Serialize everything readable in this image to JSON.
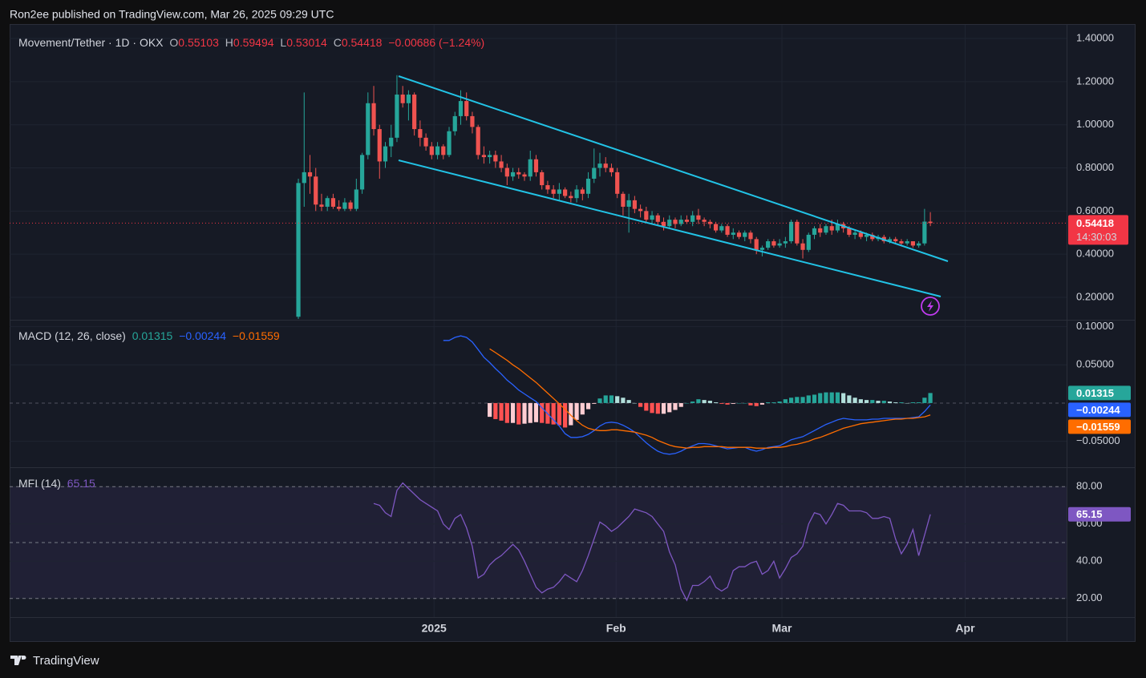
{
  "header": "Ron2ee published on TradingView.com, Mar 26, 2025 09:29 UTC",
  "footer": "TradingView",
  "chart_data": [
    {
      "type": "candlestick",
      "title": "Movement/Tether · 1D · OKX",
      "ohlc_keys": [
        "O",
        "H",
        "L",
        "C"
      ],
      "ohlc_labels": [
        "0.55103",
        "0.59494",
        "0.53014",
        "0.54418"
      ],
      "change_label": "−0.00686 (−1.24%)",
      "last_price_label": "0.54418",
      "countdown": "14:30:03",
      "up_color": "#26a69a",
      "down_color": "#ef5350",
      "last_line_color": "#f23645",
      "xlim": [
        -49.8,
        132.5
      ],
      "xticks": [
        {
          "value": 23.4,
          "label": "2025"
        },
        {
          "value": 54.8,
          "label": "Feb"
        },
        {
          "value": 83.4,
          "label": "Mar"
        },
        {
          "value": 115,
          "label": "Apr"
        }
      ],
      "ylim": [
        0.096,
        1.467
      ],
      "yticks": [
        {
          "value": 0.2,
          "label": "0.20000"
        },
        {
          "value": 0.4,
          "label": "0.40000"
        },
        {
          "value": 0.6,
          "label": "0.60000"
        },
        {
          "value": 0.8,
          "label": "0.80000"
        },
        {
          "value": 1.0,
          "label": "1.00000"
        },
        {
          "value": 1.2,
          "label": "1.20000"
        },
        {
          "value": 1.4,
          "label": "1.40000"
        }
      ],
      "grid": true,
      "open": [
        0.11,
        0.73,
        0.78,
        0.76,
        0.63,
        0.62,
        0.66,
        0.62,
        0.61,
        0.64,
        0.61,
        0.7,
        0.86,
        1.1,
        0.98,
        0.83,
        0.9,
        0.94,
        1.14,
        1.1,
        1.14,
        0.98,
        0.94,
        0.9,
        0.86,
        0.9,
        0.86,
        0.97,
        1.04,
        1.11,
        1.04,
        0.99,
        0.86,
        0.85,
        0.86,
        0.83,
        0.8,
        0.76,
        0.78,
        0.77,
        0.76,
        0.84,
        0.78,
        0.72,
        0.7,
        0.68,
        0.7,
        0.67,
        0.66,
        0.7,
        0.68,
        0.75,
        0.8,
        0.82,
        0.8,
        0.78,
        0.68,
        0.62,
        0.65,
        0.61,
        0.6,
        0.56,
        0.58,
        0.55,
        0.53,
        0.56,
        0.54,
        0.56,
        0.55,
        0.58,
        0.56,
        0.55,
        0.54,
        0.51,
        0.53,
        0.49,
        0.5,
        0.48,
        0.5,
        0.47,
        0.42,
        0.43,
        0.46,
        0.44,
        0.45,
        0.46,
        0.55,
        0.45,
        0.42,
        0.49,
        0.52,
        0.5,
        0.53,
        0.51,
        0.54,
        0.52,
        0.49,
        0.5,
        0.48,
        0.49,
        0.47,
        0.48,
        0.46,
        0.47,
        0.46,
        0.45,
        0.46,
        0.44,
        0.45,
        0.55103
      ],
      "high": [
        0.75,
        1.15,
        0.86,
        0.8,
        0.68,
        0.67,
        0.68,
        0.65,
        0.66,
        0.65,
        0.75,
        0.87,
        1.15,
        1.18,
        1.0,
        0.92,
        1.0,
        1.23,
        1.18,
        1.16,
        1.15,
        1.02,
        0.96,
        0.92,
        0.92,
        0.91,
        0.99,
        1.06,
        1.16,
        1.15,
        1.06,
        1.0,
        0.9,
        0.88,
        0.88,
        0.86,
        0.82,
        0.8,
        0.8,
        0.78,
        0.88,
        0.86,
        0.79,
        0.74,
        0.72,
        0.73,
        0.71,
        0.69,
        0.72,
        0.71,
        0.78,
        0.89,
        0.87,
        0.85,
        0.82,
        0.8,
        0.69,
        0.68,
        0.67,
        0.63,
        0.62,
        0.6,
        0.59,
        0.57,
        0.58,
        0.57,
        0.58,
        0.58,
        0.6,
        0.61,
        0.57,
        0.56,
        0.55,
        0.54,
        0.54,
        0.52,
        0.51,
        0.51,
        0.51,
        0.48,
        0.44,
        0.47,
        0.47,
        0.47,
        0.48,
        0.56,
        0.56,
        0.47,
        0.5,
        0.53,
        0.54,
        0.54,
        0.56,
        0.56,
        0.55,
        0.53,
        0.51,
        0.51,
        0.5,
        0.5,
        0.49,
        0.49,
        0.48,
        0.48,
        0.47,
        0.47,
        0.46,
        0.46,
        0.61,
        0.59494
      ],
      "low": [
        0.1,
        0.62,
        0.68,
        0.6,
        0.6,
        0.6,
        0.61,
        0.6,
        0.6,
        0.6,
        0.6,
        0.68,
        0.84,
        0.95,
        0.75,
        0.8,
        0.85,
        0.92,
        1.08,
        1.02,
        0.95,
        0.9,
        0.88,
        0.84,
        0.84,
        0.84,
        0.85,
        0.95,
        1.0,
        1.02,
        0.96,
        0.84,
        0.82,
        0.82,
        0.8,
        0.78,
        0.72,
        0.74,
        0.75,
        0.74,
        0.74,
        0.76,
        0.7,
        0.68,
        0.66,
        0.65,
        0.66,
        0.64,
        0.64,
        0.65,
        0.66,
        0.73,
        0.76,
        0.78,
        0.76,
        0.66,
        0.58,
        0.5,
        0.59,
        0.57,
        0.55,
        0.54,
        0.53,
        0.51,
        0.52,
        0.52,
        0.53,
        0.54,
        0.53,
        0.54,
        0.53,
        0.52,
        0.5,
        0.5,
        0.48,
        0.47,
        0.47,
        0.46,
        0.45,
        0.4,
        0.39,
        0.42,
        0.43,
        0.43,
        0.43,
        0.45,
        0.44,
        0.38,
        0.41,
        0.47,
        0.48,
        0.49,
        0.49,
        0.5,
        0.5,
        0.48,
        0.47,
        0.47,
        0.46,
        0.46,
        0.46,
        0.45,
        0.45,
        0.45,
        0.44,
        0.44,
        0.43,
        0.43,
        0.44,
        0.53014
      ],
      "close": [
        0.73,
        0.78,
        0.76,
        0.63,
        0.62,
        0.66,
        0.62,
        0.61,
        0.64,
        0.61,
        0.7,
        0.86,
        1.1,
        0.98,
        0.83,
        0.9,
        0.94,
        1.14,
        1.1,
        1.14,
        0.98,
        0.94,
        0.9,
        0.86,
        0.9,
        0.86,
        0.97,
        1.04,
        1.11,
        1.04,
        0.99,
        0.86,
        0.85,
        0.86,
        0.83,
        0.8,
        0.76,
        0.78,
        0.77,
        0.76,
        0.84,
        0.78,
        0.72,
        0.7,
        0.68,
        0.7,
        0.67,
        0.66,
        0.7,
        0.68,
        0.75,
        0.8,
        0.82,
        0.8,
        0.78,
        0.68,
        0.62,
        0.65,
        0.61,
        0.6,
        0.56,
        0.58,
        0.55,
        0.53,
        0.56,
        0.54,
        0.56,
        0.55,
        0.58,
        0.56,
        0.55,
        0.54,
        0.51,
        0.53,
        0.49,
        0.5,
        0.48,
        0.5,
        0.47,
        0.42,
        0.43,
        0.46,
        0.44,
        0.45,
        0.46,
        0.55,
        0.45,
        0.42,
        0.49,
        0.52,
        0.5,
        0.53,
        0.51,
        0.54,
        0.52,
        0.49,
        0.5,
        0.48,
        0.49,
        0.47,
        0.48,
        0.46,
        0.47,
        0.46,
        0.45,
        0.46,
        0.44,
        0.45,
        0.55103,
        0.54418
      ]
    },
    {
      "type": "macd",
      "title": "MACD (12, 26, close)",
      "legend_values": [
        "0.01315",
        "−0.00244",
        "−0.01559"
      ],
      "legend_colors": [
        "#26a69a",
        "#2962ff",
        "#ff6d00"
      ],
      "histogram_colors": [
        "#26a69a",
        "#b2dfdb",
        "#ffcdd2",
        "#ff5252"
      ],
      "ylim": [
        -0.084,
        0.108
      ],
      "yticks": [
        {
          "value": -0.05,
          "label": "−0.05000"
        },
        {
          "value": 0.05,
          "label": "0.05000"
        },
        {
          "value": 0.1,
          "label": "0.10000"
        }
      ],
      "zero_line": 0,
      "series": [
        {
          "color": "#26a69a",
          "values": [
            null,
            null,
            null,
            null,
            null,
            null,
            null,
            null,
            null,
            null,
            null,
            null,
            null,
            null,
            null,
            null,
            null,
            null,
            null,
            null,
            null,
            null,
            null,
            null,
            null,
            null,
            null,
            null,
            null,
            null,
            null,
            null,
            null,
            -0.018,
            -0.021,
            -0.023,
            -0.026,
            -0.026,
            -0.028,
            -0.027,
            -0.026,
            -0.025,
            -0.026,
            -0.027,
            -0.028,
            -0.029,
            -0.032,
            -0.029,
            -0.022,
            -0.015,
            -0.008,
            -0.001,
            0.006,
            0.01,
            0.01,
            0.009,
            0.007,
            0.004,
            0.0,
            -0.005,
            -0.01,
            -0.013,
            -0.014,
            -0.014,
            -0.012,
            -0.009,
            -0.005,
            0.0,
            0.002,
            0.005,
            0.004,
            0.003,
            0.001,
            -0.001,
            -0.002,
            -0.001,
            0.0,
            0.0,
            -0.003,
            -0.004,
            -0.002,
            0.001,
            0.001,
            0.002,
            0.005,
            0.007,
            0.008,
            0.008,
            0.01,
            0.011,
            0.013,
            0.014,
            0.014,
            0.014,
            0.013,
            0.01,
            0.007,
            0.005,
            0.004,
            0.004,
            0.003,
            0.003,
            0.002,
            0.001,
            0.001,
            0.0,
            0.001,
            0.001,
            0.007,
            0.01315
          ]
        },
        {
          "color": "#2962ff",
          "values": [
            null,
            null,
            null,
            null,
            null,
            null,
            null,
            null,
            null,
            null,
            null,
            null,
            null,
            null,
            null,
            null,
            null,
            null,
            null,
            null,
            null,
            null,
            null,
            null,
            null,
            0.082,
            0.082,
            0.086,
            0.088,
            0.086,
            0.08,
            0.07,
            0.06,
            0.053,
            0.045,
            0.038,
            0.03,
            0.024,
            0.017,
            0.012,
            0.007,
            0.002,
            -0.006,
            -0.014,
            -0.022,
            -0.03,
            -0.04,
            -0.045,
            -0.045,
            -0.044,
            -0.041,
            -0.036,
            -0.03,
            -0.026,
            -0.025,
            -0.026,
            -0.029,
            -0.033,
            -0.038,
            -0.045,
            -0.052,
            -0.058,
            -0.063,
            -0.066,
            -0.067,
            -0.066,
            -0.063,
            -0.059,
            -0.056,
            -0.053,
            -0.053,
            -0.054,
            -0.056,
            -0.058,
            -0.06,
            -0.059,
            -0.058,
            -0.058,
            -0.061,
            -0.063,
            -0.061,
            -0.058,
            -0.057,
            -0.056,
            -0.052,
            -0.048,
            -0.046,
            -0.044,
            -0.04,
            -0.036,
            -0.032,
            -0.028,
            -0.025,
            -0.022,
            -0.02,
            -0.021,
            -0.022,
            -0.022,
            -0.022,
            -0.021,
            -0.021,
            -0.02,
            -0.02,
            -0.02,
            -0.02,
            -0.02,
            -0.019,
            -0.018,
            -0.011,
            -0.00244
          ]
        },
        {
          "color": "#ff6d00",
          "values": [
            null,
            null,
            null,
            null,
            null,
            null,
            null,
            null,
            null,
            null,
            null,
            null,
            null,
            null,
            null,
            null,
            null,
            null,
            null,
            null,
            null,
            null,
            null,
            null,
            null,
            null,
            null,
            null,
            null,
            null,
            null,
            null,
            null,
            0.071,
            0.066,
            0.061,
            0.056,
            0.05,
            0.045,
            0.039,
            0.033,
            0.027,
            0.02,
            0.013,
            0.006,
            -0.001,
            -0.008,
            -0.016,
            -0.023,
            -0.029,
            -0.033,
            -0.035,
            -0.036,
            -0.036,
            -0.035,
            -0.035,
            -0.036,
            -0.037,
            -0.038,
            -0.04,
            -0.042,
            -0.045,
            -0.049,
            -0.052,
            -0.055,
            -0.057,
            -0.058,
            -0.059,
            -0.058,
            -0.058,
            -0.057,
            -0.057,
            -0.057,
            -0.057,
            -0.058,
            -0.058,
            -0.058,
            -0.058,
            -0.058,
            -0.059,
            -0.059,
            -0.059,
            -0.058,
            -0.058,
            -0.057,
            -0.055,
            -0.054,
            -0.052,
            -0.05,
            -0.047,
            -0.045,
            -0.042,
            -0.039,
            -0.036,
            -0.033,
            -0.031,
            -0.029,
            -0.027,
            -0.026,
            -0.025,
            -0.024,
            -0.023,
            -0.022,
            -0.021,
            -0.021,
            -0.02,
            -0.02,
            -0.019,
            -0.018,
            -0.01559
          ]
        }
      ]
    },
    {
      "type": "line",
      "title": "MFI (14)",
      "legend_value": "65.15",
      "ylim": [
        10,
        90
      ],
      "yticks": [
        {
          "value": 20,
          "label": "20.00"
        },
        {
          "value": 40,
          "label": "40.00"
        },
        {
          "value": 60,
          "label": "60.00"
        },
        {
          "value": 80,
          "label": "80.00"
        }
      ],
      "bands": [
        20,
        50,
        80
      ],
      "band_color": "#7e57c2",
      "series": [
        {
          "color": "#7e57c2",
          "values": [
            null,
            null,
            null,
            null,
            null,
            null,
            null,
            null,
            null,
            null,
            null,
            null,
            null,
            71,
            70,
            66,
            64,
            78,
            82,
            79,
            76,
            73,
            71,
            69,
            67,
            60,
            57,
            63,
            65,
            58,
            48,
            31,
            33,
            38,
            41,
            43,
            46,
            49,
            46,
            40,
            33,
            26,
            23,
            25,
            26,
            29,
            33,
            31,
            29,
            35,
            43,
            52,
            61,
            59,
            56,
            58,
            61,
            64,
            68,
            67,
            66,
            64,
            60,
            56,
            45,
            38,
            25,
            19,
            27,
            27,
            29,
            32,
            26,
            24,
            26,
            35,
            37,
            37,
            39,
            40,
            33,
            35,
            40,
            31,
            36,
            42,
            44,
            48,
            60,
            66,
            65,
            60,
            65,
            71,
            70,
            67,
            67,
            67,
            66,
            63,
            63,
            64,
            63,
            52,
            44,
            49,
            57,
            43,
            54,
            65.15
          ]
        }
      ]
    }
  ]
}
